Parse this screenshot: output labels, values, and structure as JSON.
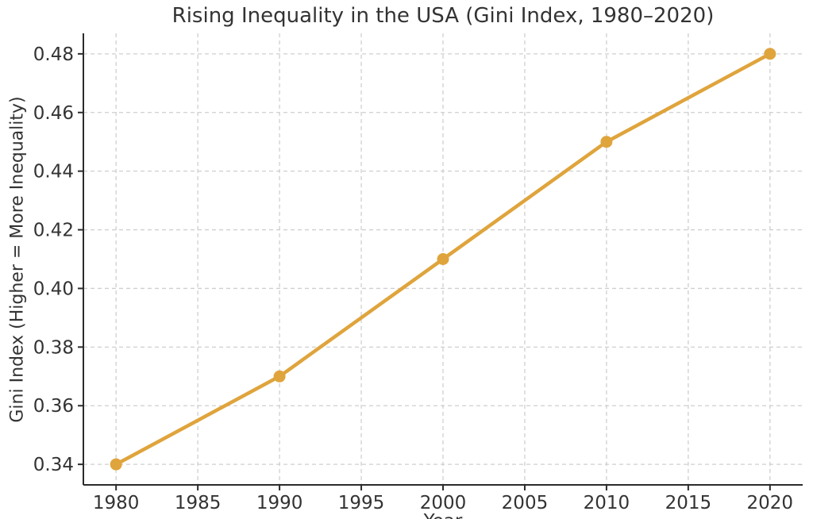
{
  "chart_data": {
    "type": "line",
    "title": "Rising Inequality in the USA (Gini Index, 1980–2020)",
    "xlabel": "Year",
    "ylabel": "Gini Index (Higher = More Inequality)",
    "series": [
      {
        "name": "Gini Index",
        "x": [
          1980,
          1990,
          2000,
          2010,
          2020
        ],
        "values": [
          0.34,
          0.37,
          0.41,
          0.45,
          0.48
        ]
      }
    ],
    "xlim": [
      1978,
      2022
    ],
    "ylim": [
      0.333,
      0.487
    ],
    "xticks": [
      1980,
      1985,
      1990,
      1995,
      2000,
      2005,
      2010,
      2015,
      2020
    ],
    "xtick_labels": [
      "1980",
      "1985",
      "1990",
      "1995",
      "2000",
      "2005",
      "2010",
      "2015",
      "2020"
    ],
    "yticks": [
      0.34,
      0.36,
      0.38,
      0.4,
      0.42,
      0.44,
      0.46,
      0.48
    ],
    "ytick_labels": [
      "0.34",
      "0.36",
      "0.38",
      "0.40",
      "0.42",
      "0.44",
      "0.46",
      "0.48"
    ],
    "grid": "dashed-both-axes",
    "legend": "none",
    "marker": "circle"
  },
  "colors": {
    "line": "#DFA43C",
    "marker": "#DFA43C",
    "grid": "#cfcfcf",
    "spine": "#2b2b2b",
    "tick": "#2b2b2b",
    "text": "#333333",
    "background": "#ffffff"
  }
}
